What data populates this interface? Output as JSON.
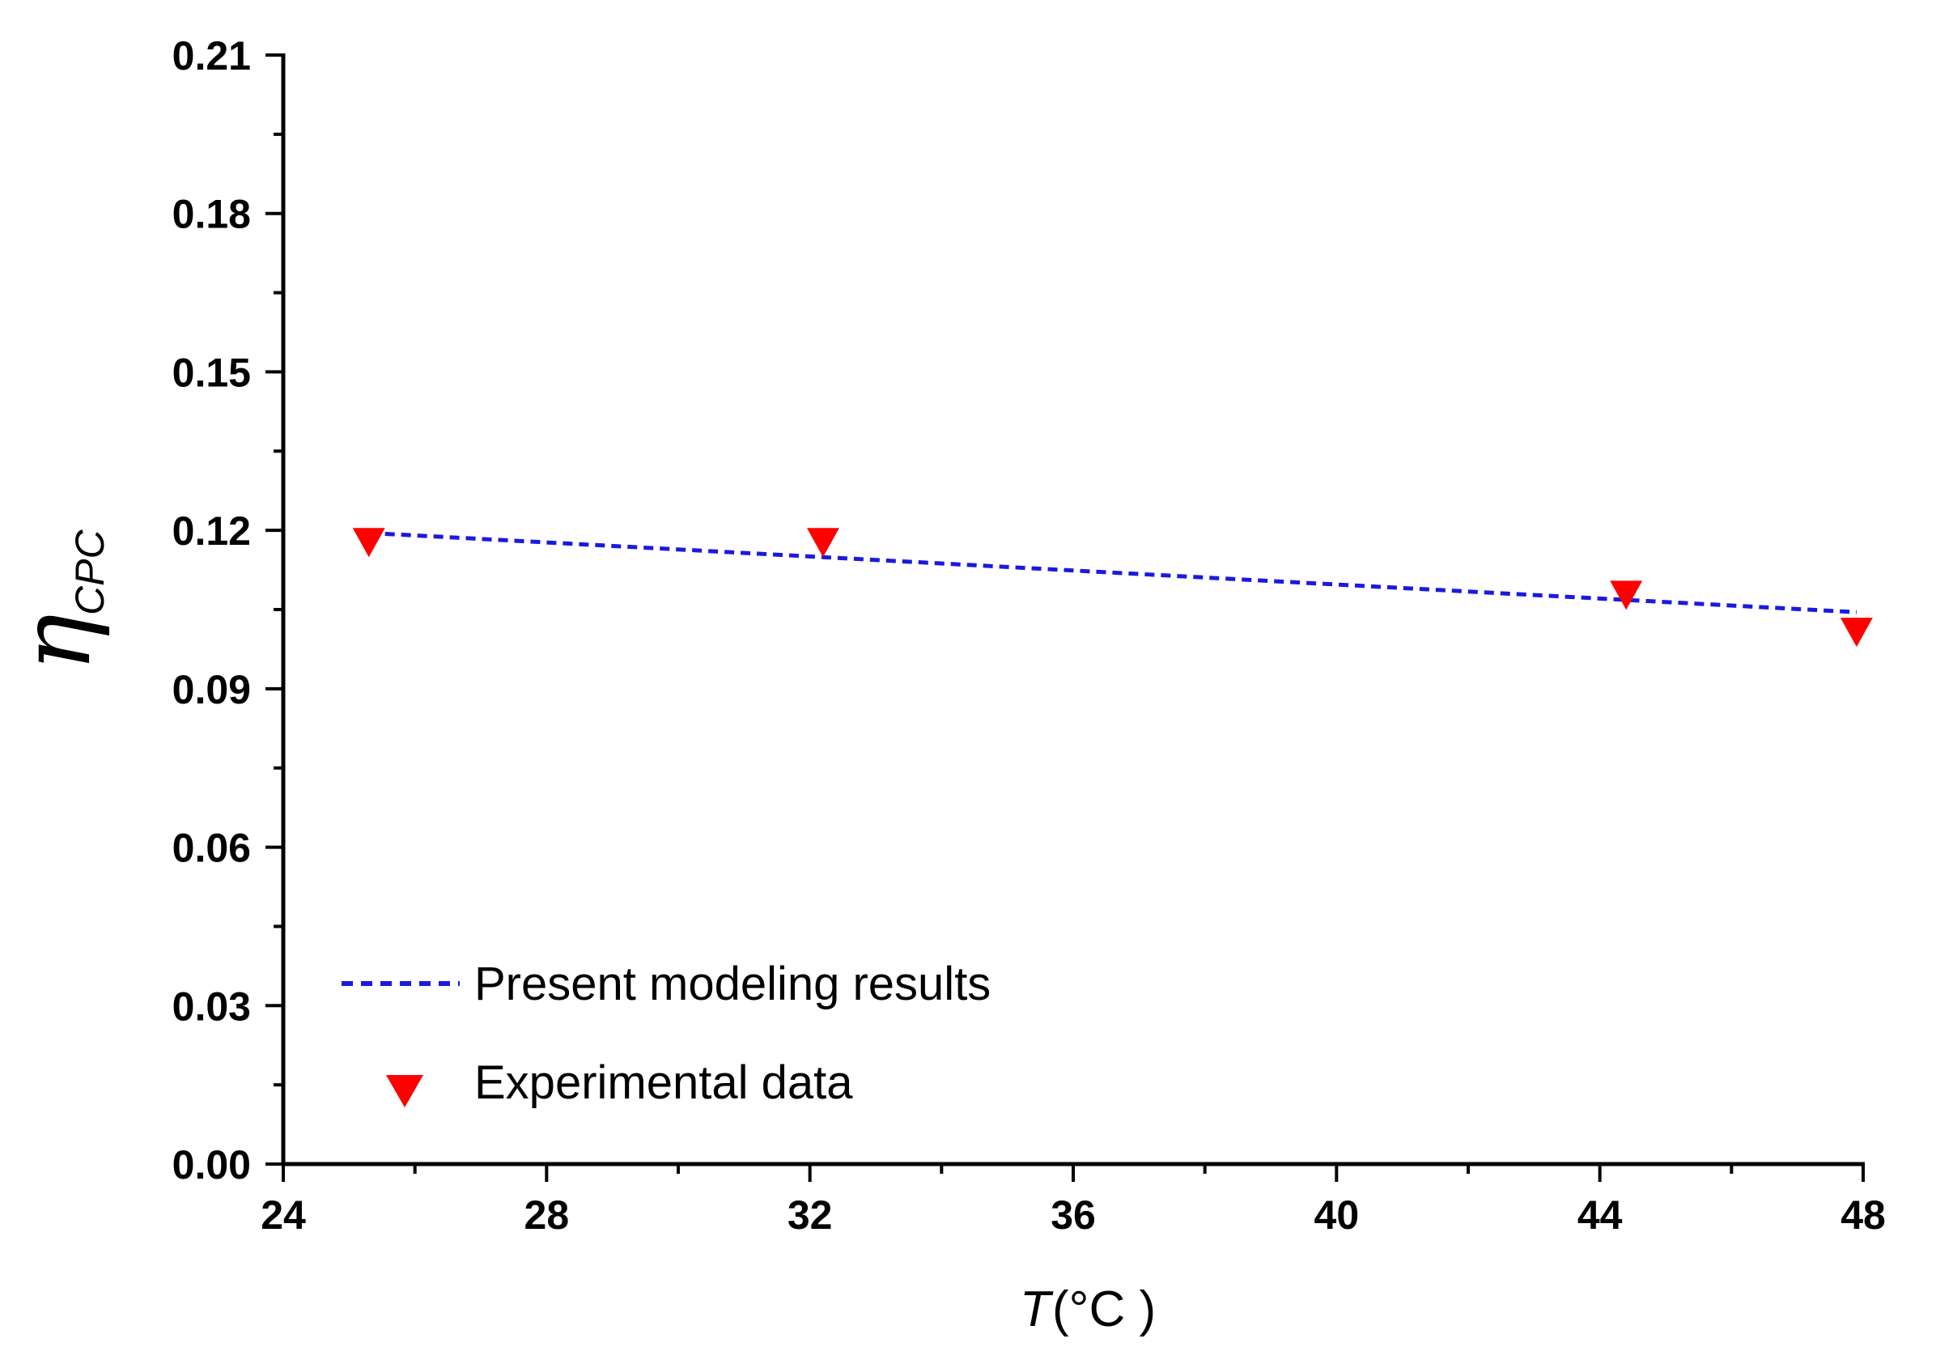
{
  "colors": {
    "model_line": "#1a1adf",
    "experiment_marker": "#ff0000",
    "axis": "#000000"
  },
  "chart_data": {
    "type": "line+scatter",
    "x_label_symbol": "T",
    "x_label_unit": "(°C )",
    "y_label_symbol": "η",
    "y_label_subscript": "CPC",
    "xlim": [
      24,
      48
    ],
    "ylim": [
      0.0,
      0.21
    ],
    "x_ticks": [
      24,
      28,
      32,
      36,
      40,
      44,
      48
    ],
    "x_tick_labels": [
      "24",
      "28",
      "32",
      "36",
      "40",
      "44",
      "48"
    ],
    "y_ticks": [
      0.0,
      0.03,
      0.06,
      0.09,
      0.12,
      0.15,
      0.18,
      0.21
    ],
    "y_tick_labels": [
      "0.00",
      "0.03",
      "0.06",
      "0.09",
      "0.12",
      "0.15",
      "0.18",
      "0.21"
    ],
    "legend_position": "bottom-left",
    "series": [
      {
        "name": "Present modeling results",
        "kind": "dashed-line",
        "x": [
          25.3,
          47.9
        ],
        "y": [
          0.1195,
          0.1045
        ]
      },
      {
        "name": "Experimental data",
        "kind": "down-triangle-marker",
        "x": [
          25.3,
          32.2,
          44.4,
          47.9
        ],
        "y": [
          0.118,
          0.118,
          0.108,
          0.101
        ]
      }
    ]
  }
}
